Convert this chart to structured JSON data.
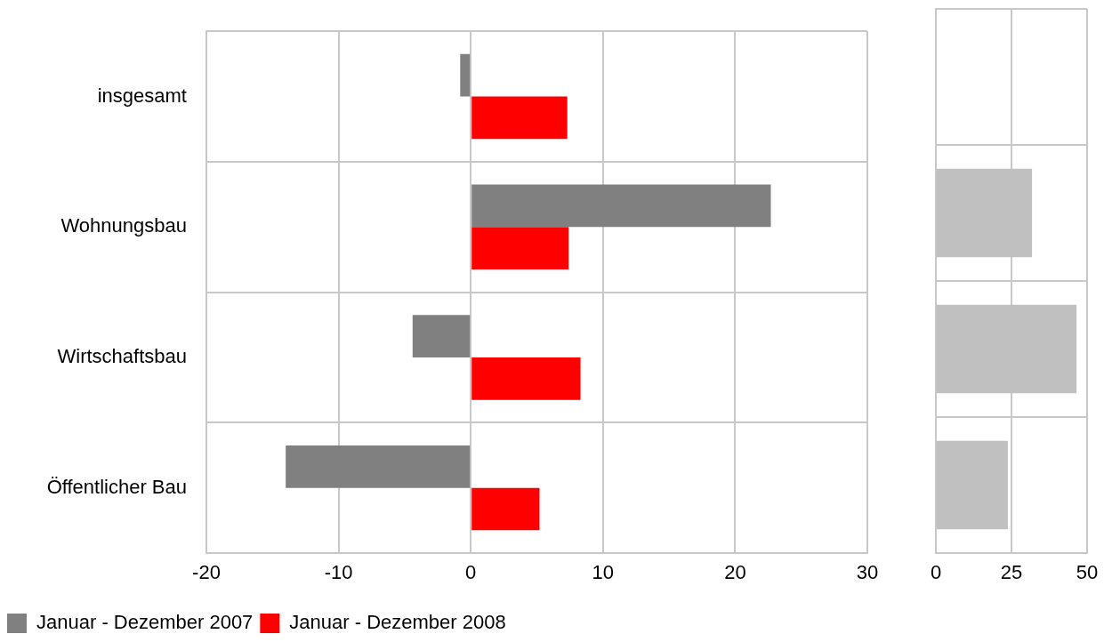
{
  "chart_data": [
    {
      "type": "bar",
      "orientation": "horizontal",
      "categories": [
        "insgesamt",
        "Wohnungsbau",
        "Wirtschaftsbau",
        "Öffentlicher Bau"
      ],
      "series": [
        {
          "name": "Januar - Dezember 2007",
          "color": "#808080",
          "values": [
            -0.8,
            22.7,
            -4.4,
            -14.0
          ]
        },
        {
          "name": "Januar - Dezember 2008",
          "color": "#ff0000",
          "values": [
            7.3,
            7.4,
            8.3,
            5.2
          ]
        }
      ],
      "xlim": [
        -20,
        30
      ],
      "xticks": [
        -20,
        -10,
        0,
        10,
        20,
        30
      ],
      "grid": true,
      "legend": "bottom"
    },
    {
      "type": "bar",
      "orientation": "horizontal",
      "categories": [
        null,
        null,
        null,
        null
      ],
      "series": [
        {
          "color": "#c0c0c0",
          "values": [
            null,
            31.8,
            46.5,
            23.8
          ]
        }
      ],
      "xlim": [
        0,
        50
      ],
      "xticks": [
        0,
        25,
        50
      ],
      "grid": true,
      "tick_labels": "x"
    }
  ]
}
